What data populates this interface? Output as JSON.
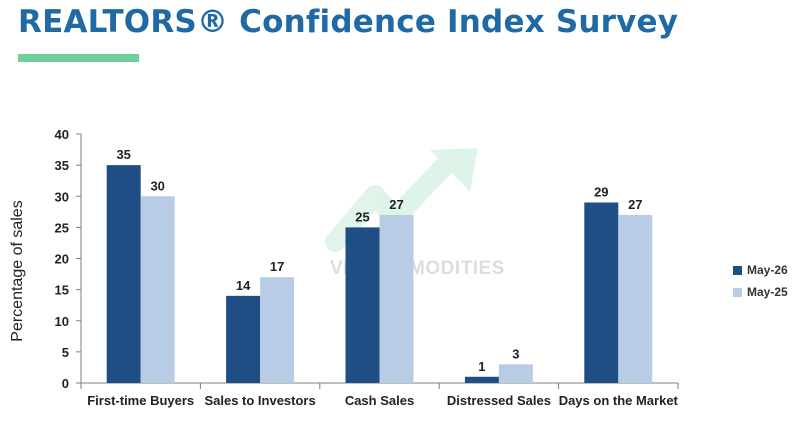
{
  "header": {
    "title": "REALTORS® Confidence Index Survey"
  },
  "watermark": {
    "text": "VN COMMODITIES"
  },
  "chart_data": {
    "type": "bar",
    "title": "",
    "xlabel": "",
    "ylabel": "Percentage of  sales",
    "ylim": [
      0,
      40
    ],
    "yticks": [
      0,
      5,
      10,
      15,
      20,
      25,
      30,
      35,
      40
    ],
    "categories": [
      "First-time Buyers",
      "Sales to Investors",
      "Cash Sales",
      "Distressed Sales",
      "Days on the Market"
    ],
    "series": [
      {
        "name": "May-26",
        "color": "#1f4e84",
        "values": [
          35,
          14,
          25,
          1,
          29
        ]
      },
      {
        "name": "May-25",
        "color": "#b8cce6",
        "values": [
          30,
          17,
          27,
          3,
          27
        ]
      }
    ],
    "data_labels": true,
    "grid": false,
    "legend_position": "right"
  }
}
